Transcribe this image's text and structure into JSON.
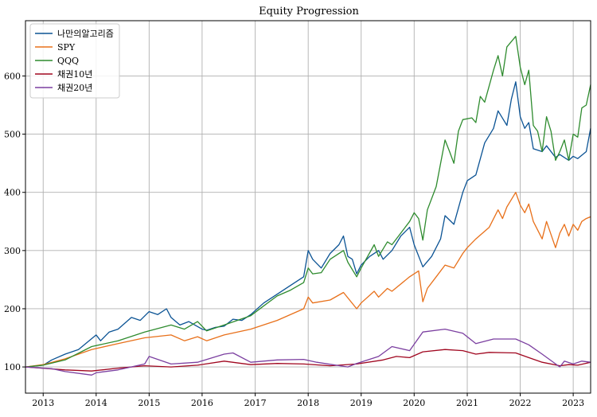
{
  "chart_data": {
    "type": "line",
    "title": "Equity Progression",
    "xlabel": "",
    "ylabel": "",
    "x_range": [
      "2012-09-01",
      "2023-05-01"
    ],
    "ylim": [
      55,
      695
    ],
    "grid": true,
    "legend_placement": "top-left",
    "x_ticks": [
      {
        "date": "2013-01-01",
        "label": "2013"
      },
      {
        "date": "2014-01-01",
        "label": "2014"
      },
      {
        "date": "2015-01-01",
        "label": "2015"
      },
      {
        "date": "2016-01-01",
        "label": "2016"
      },
      {
        "date": "2017-01-01",
        "label": "2017"
      },
      {
        "date": "2018-01-01",
        "label": "2018"
      },
      {
        "date": "2019-01-01",
        "label": "2019"
      },
      {
        "date": "2020-01-01",
        "label": "2020"
      },
      {
        "date": "2021-01-01",
        "label": "2021"
      },
      {
        "date": "2022-01-01",
        "label": "2022"
      },
      {
        "date": "2023-01-01",
        "label": "2023"
      }
    ],
    "y_ticks": [
      100,
      200,
      300,
      400,
      500,
      600
    ],
    "series": [
      {
        "name": "나만의알고리즘",
        "color": "#0b5394",
        "points": [
          [
            "2012-09-01",
            100
          ],
          [
            "2013-01-01",
            103
          ],
          [
            "2013-03-01",
            112
          ],
          [
            "2013-06-01",
            122
          ],
          [
            "2013-09-01",
            130
          ],
          [
            "2014-01-01",
            155
          ],
          [
            "2014-02-01",
            145
          ],
          [
            "2014-04-01",
            160
          ],
          [
            "2014-06-01",
            165
          ],
          [
            "2014-09-01",
            185
          ],
          [
            "2014-11-01",
            180
          ],
          [
            "2015-01-01",
            195
          ],
          [
            "2015-03-01",
            190
          ],
          [
            "2015-05-01",
            200
          ],
          [
            "2015-06-01",
            185
          ],
          [
            "2015-08-01",
            172
          ],
          [
            "2015-10-01",
            178
          ],
          [
            "2016-01-01",
            165
          ],
          [
            "2016-02-01",
            163
          ],
          [
            "2016-04-01",
            168
          ],
          [
            "2016-06-01",
            170
          ],
          [
            "2016-08-01",
            182
          ],
          [
            "2016-10-01",
            180
          ],
          [
            "2016-12-01",
            190
          ],
          [
            "2017-03-01",
            210
          ],
          [
            "2017-06-01",
            225
          ],
          [
            "2017-09-01",
            240
          ],
          [
            "2017-12-01",
            255
          ],
          [
            "2018-01-01",
            300
          ],
          [
            "2018-02-01",
            285
          ],
          [
            "2018-04-01",
            270
          ],
          [
            "2018-06-01",
            295
          ],
          [
            "2018-08-01",
            310
          ],
          [
            "2018-09-01",
            325
          ],
          [
            "2018-10-01",
            290
          ],
          [
            "2018-11-01",
            285
          ],
          [
            "2018-12-01",
            260
          ],
          [
            "2019-01-01",
            275
          ],
          [
            "2019-03-01",
            290
          ],
          [
            "2019-05-01",
            300
          ],
          [
            "2019-06-01",
            285
          ],
          [
            "2019-08-01",
            300
          ],
          [
            "2019-10-01",
            325
          ],
          [
            "2019-12-01",
            340
          ],
          [
            "2020-01-01",
            310
          ],
          [
            "2020-03-01",
            272
          ],
          [
            "2020-05-01",
            290
          ],
          [
            "2020-07-01",
            320
          ],
          [
            "2020-08-01",
            360
          ],
          [
            "2020-10-01",
            345
          ],
          [
            "2020-12-01",
            400
          ],
          [
            "2021-01-01",
            420
          ],
          [
            "2021-03-01",
            430
          ],
          [
            "2021-05-01",
            485
          ],
          [
            "2021-07-01",
            510
          ],
          [
            "2021-08-01",
            540
          ],
          [
            "2021-10-01",
            515
          ],
          [
            "2021-11-01",
            560
          ],
          [
            "2021-12-01",
            590
          ],
          [
            "2022-01-01",
            530
          ],
          [
            "2022-02-01",
            510
          ],
          [
            "2022-03-01",
            520
          ],
          [
            "2022-04-01",
            475
          ],
          [
            "2022-06-01",
            470
          ],
          [
            "2022-07-01",
            480
          ],
          [
            "2022-09-01",
            460
          ],
          [
            "2022-10-01",
            465
          ],
          [
            "2022-12-01",
            455
          ],
          [
            "2023-01-01",
            462
          ],
          [
            "2023-02-01",
            458
          ],
          [
            "2023-04-01",
            470
          ],
          [
            "2023-05-01",
            510
          ]
        ]
      },
      {
        "name": "SPY",
        "color": "#e8701a",
        "points": [
          [
            "2012-09-01",
            100
          ],
          [
            "2013-01-01",
            104
          ],
          [
            "2013-06-01",
            114
          ],
          [
            "2013-12-01",
            130
          ],
          [
            "2014-06-01",
            140
          ],
          [
            "2014-12-01",
            150
          ],
          [
            "2015-06-01",
            155
          ],
          [
            "2015-09-01",
            145
          ],
          [
            "2015-12-01",
            152
          ],
          [
            "2016-02-01",
            145
          ],
          [
            "2016-06-01",
            155
          ],
          [
            "2016-12-01",
            165
          ],
          [
            "2017-06-01",
            180
          ],
          [
            "2017-12-01",
            200
          ],
          [
            "2018-01-01",
            220
          ],
          [
            "2018-02-01",
            210
          ],
          [
            "2018-06-01",
            215
          ],
          [
            "2018-09-01",
            228
          ],
          [
            "2018-12-01",
            200
          ],
          [
            "2019-01-01",
            210
          ],
          [
            "2019-04-01",
            230
          ],
          [
            "2019-05-01",
            220
          ],
          [
            "2019-07-01",
            235
          ],
          [
            "2019-08-01",
            230
          ],
          [
            "2019-12-01",
            255
          ],
          [
            "2020-02-01",
            265
          ],
          [
            "2020-03-01",
            212
          ],
          [
            "2020-04-01",
            235
          ],
          [
            "2020-06-01",
            255
          ],
          [
            "2020-08-01",
            275
          ],
          [
            "2020-10-01",
            270
          ],
          [
            "2020-12-01",
            295
          ],
          [
            "2021-01-01",
            305
          ],
          [
            "2021-03-01",
            320
          ],
          [
            "2021-06-01",
            340
          ],
          [
            "2021-08-01",
            370
          ],
          [
            "2021-09-01",
            355
          ],
          [
            "2021-10-01",
            375
          ],
          [
            "2021-12-01",
            400
          ],
          [
            "2022-01-01",
            378
          ],
          [
            "2022-02-01",
            365
          ],
          [
            "2022-03-01",
            380
          ],
          [
            "2022-04-01",
            350
          ],
          [
            "2022-06-01",
            320
          ],
          [
            "2022-07-01",
            350
          ],
          [
            "2022-09-01",
            305
          ],
          [
            "2022-10-01",
            330
          ],
          [
            "2022-11-01",
            345
          ],
          [
            "2022-12-01",
            325
          ],
          [
            "2023-01-01",
            345
          ],
          [
            "2023-02-01",
            335
          ],
          [
            "2023-03-01",
            350
          ],
          [
            "2023-04-01",
            355
          ],
          [
            "2023-05-01",
            358
          ]
        ]
      },
      {
        "name": "QQQ",
        "color": "#2e8b2e",
        "points": [
          [
            "2012-09-01",
            100
          ],
          [
            "2013-01-01",
            103
          ],
          [
            "2013-06-01",
            112
          ],
          [
            "2013-12-01",
            135
          ],
          [
            "2014-06-01",
            145
          ],
          [
            "2014-12-01",
            160
          ],
          [
            "2015-06-01",
            172
          ],
          [
            "2015-09-01",
            165
          ],
          [
            "2015-12-01",
            178
          ],
          [
            "2016-02-01",
            162
          ],
          [
            "2016-06-01",
            172
          ],
          [
            "2016-12-01",
            188
          ],
          [
            "2017-03-01",
            205
          ],
          [
            "2017-06-01",
            222
          ],
          [
            "2017-09-01",
            232
          ],
          [
            "2017-12-01",
            245
          ],
          [
            "2018-01-01",
            270
          ],
          [
            "2018-02-01",
            260
          ],
          [
            "2018-04-01",
            262
          ],
          [
            "2018-06-01",
            285
          ],
          [
            "2018-09-01",
            300
          ],
          [
            "2018-10-01",
            280
          ],
          [
            "2018-12-01",
            255
          ],
          [
            "2019-01-01",
            270
          ],
          [
            "2019-04-01",
            310
          ],
          [
            "2019-05-01",
            290
          ],
          [
            "2019-07-01",
            315
          ],
          [
            "2019-08-01",
            310
          ],
          [
            "2019-12-01",
            350
          ],
          [
            "2020-01-01",
            365
          ],
          [
            "2020-02-01",
            355
          ],
          [
            "2020-03-01",
            318
          ],
          [
            "2020-04-01",
            370
          ],
          [
            "2020-06-01",
            410
          ],
          [
            "2020-08-01",
            490
          ],
          [
            "2020-09-01",
            470
          ],
          [
            "2020-10-01",
            450
          ],
          [
            "2020-11-01",
            505
          ],
          [
            "2020-12-01",
            525
          ],
          [
            "2021-02-01",
            528
          ],
          [
            "2021-03-01",
            520
          ],
          [
            "2021-04-01",
            565
          ],
          [
            "2021-05-01",
            555
          ],
          [
            "2021-07-01",
            610
          ],
          [
            "2021-08-01",
            635
          ],
          [
            "2021-09-01",
            600
          ],
          [
            "2021-10-01",
            650
          ],
          [
            "2021-12-01",
            668
          ],
          [
            "2022-01-01",
            615
          ],
          [
            "2022-02-01",
            585
          ],
          [
            "2022-03-01",
            610
          ],
          [
            "2022-04-01",
            515
          ],
          [
            "2022-05-01",
            505
          ],
          [
            "2022-06-01",
            470
          ],
          [
            "2022-07-01",
            530
          ],
          [
            "2022-08-01",
            505
          ],
          [
            "2022-09-01",
            455
          ],
          [
            "2022-10-01",
            470
          ],
          [
            "2022-11-01",
            490
          ],
          [
            "2022-12-01",
            455
          ],
          [
            "2023-01-01",
            500
          ],
          [
            "2023-02-01",
            495
          ],
          [
            "2023-03-01",
            545
          ],
          [
            "2023-04-01",
            550
          ],
          [
            "2023-05-01",
            585
          ]
        ]
      },
      {
        "name": "채권10년",
        "color": "#a0061f",
        "points": [
          [
            "2012-09-01",
            100
          ],
          [
            "2013-06-01",
            95
          ],
          [
            "2013-12-01",
            93
          ],
          [
            "2014-06-01",
            98
          ],
          [
            "2014-12-01",
            102
          ],
          [
            "2015-06-01",
            100
          ],
          [
            "2015-12-01",
            103
          ],
          [
            "2016-06-01",
            110
          ],
          [
            "2016-12-01",
            104
          ],
          [
            "2017-06-01",
            106
          ],
          [
            "2017-12-01",
            105
          ],
          [
            "2018-06-01",
            102
          ],
          [
            "2018-12-01",
            105
          ],
          [
            "2019-06-01",
            112
          ],
          [
            "2019-09-01",
            118
          ],
          [
            "2019-12-01",
            116
          ],
          [
            "2020-03-01",
            126
          ],
          [
            "2020-08-01",
            130
          ],
          [
            "2020-12-01",
            128
          ],
          [
            "2021-03-01",
            122
          ],
          [
            "2021-06-01",
            125
          ],
          [
            "2021-12-01",
            124
          ],
          [
            "2022-03-01",
            116
          ],
          [
            "2022-06-01",
            108
          ],
          [
            "2022-10-01",
            102
          ],
          [
            "2022-12-01",
            104
          ],
          [
            "2023-02-01",
            103
          ],
          [
            "2023-05-01",
            108
          ]
        ]
      },
      {
        "name": "채권20년",
        "color": "#7b3fa0",
        "points": [
          [
            "2012-09-01",
            100
          ],
          [
            "2013-03-01",
            97
          ],
          [
            "2013-06-01",
            92
          ],
          [
            "2013-12-01",
            86
          ],
          [
            "2014-01-01",
            90
          ],
          [
            "2014-06-01",
            95
          ],
          [
            "2014-12-01",
            105
          ],
          [
            "2015-01-01",
            118
          ],
          [
            "2015-06-01",
            105
          ],
          [
            "2015-12-01",
            108
          ],
          [
            "2016-03-01",
            115
          ],
          [
            "2016-06-01",
            122
          ],
          [
            "2016-08-01",
            124
          ],
          [
            "2016-12-01",
            108
          ],
          [
            "2017-06-01",
            112
          ],
          [
            "2017-12-01",
            113
          ],
          [
            "2018-03-01",
            108
          ],
          [
            "2018-10-01",
            100
          ],
          [
            "2018-12-01",
            106
          ],
          [
            "2019-05-01",
            118
          ],
          [
            "2019-08-01",
            135
          ],
          [
            "2019-12-01",
            128
          ],
          [
            "2020-03-01",
            160
          ],
          [
            "2020-08-01",
            165
          ],
          [
            "2020-12-01",
            158
          ],
          [
            "2021-03-01",
            140
          ],
          [
            "2021-07-01",
            148
          ],
          [
            "2021-12-01",
            148
          ],
          [
            "2022-03-01",
            138
          ],
          [
            "2022-06-01",
            122
          ],
          [
            "2022-10-01",
            100
          ],
          [
            "2022-11-01",
            110
          ],
          [
            "2023-01-01",
            105
          ],
          [
            "2023-03-01",
            110
          ],
          [
            "2023-05-01",
            108
          ]
        ]
      }
    ]
  }
}
